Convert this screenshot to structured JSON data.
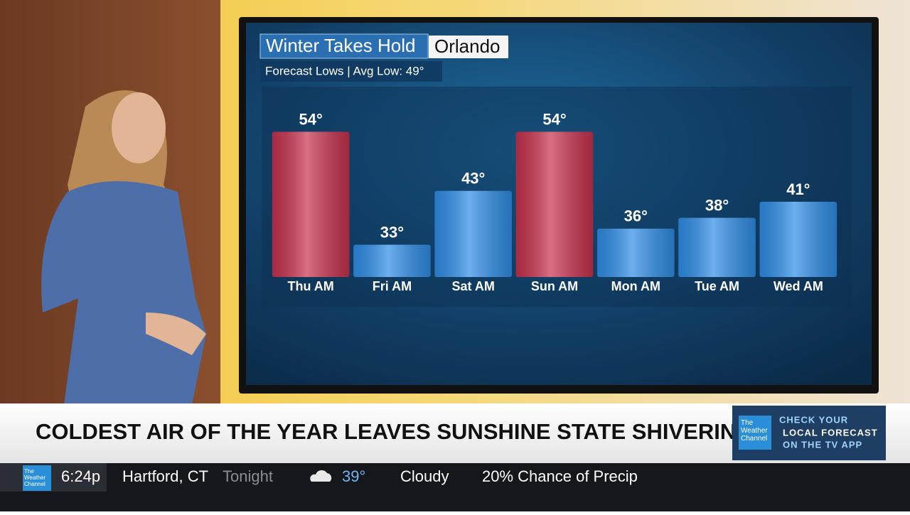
{
  "chart_data": {
    "type": "bar",
    "title": "Winter Takes Hold",
    "location": "Orlando",
    "subtitle": "Forecast Lows | Avg Low: 49°",
    "categories": [
      "Thu AM",
      "Fri AM",
      "Sat AM",
      "Sun AM",
      "Mon AM",
      "Tue AM",
      "Wed AM"
    ],
    "values": [
      54,
      33,
      43,
      54,
      36,
      38,
      41
    ],
    "value_labels": [
      "54°",
      "33°",
      "43°",
      "54°",
      "36°",
      "38°",
      "41°"
    ],
    "colors": [
      "#c8324f",
      "#2f8ee8",
      "#2f8ee8",
      "#c8324f",
      "#2f8ee8",
      "#2f8ee8",
      "#2f8ee8"
    ],
    "ylim": [
      27,
      60
    ]
  },
  "headline": "COLDEST AIR OF THE YEAR LEAVES SUNSHINE STATE SHIVERING",
  "promo": {
    "logo": "The Weather Channel",
    "text": [
      "CHECK YOUR",
      "LOCAL FORECAST",
      "ON THE TV APP"
    ]
  },
  "ticker": {
    "logo": "The Weather Channel",
    "time": "6:24p",
    "location": "Hartford, CT",
    "period": "Tonight",
    "temperature": "39°",
    "condition": "Cloudy",
    "precip": "20% Chance of Precip"
  }
}
